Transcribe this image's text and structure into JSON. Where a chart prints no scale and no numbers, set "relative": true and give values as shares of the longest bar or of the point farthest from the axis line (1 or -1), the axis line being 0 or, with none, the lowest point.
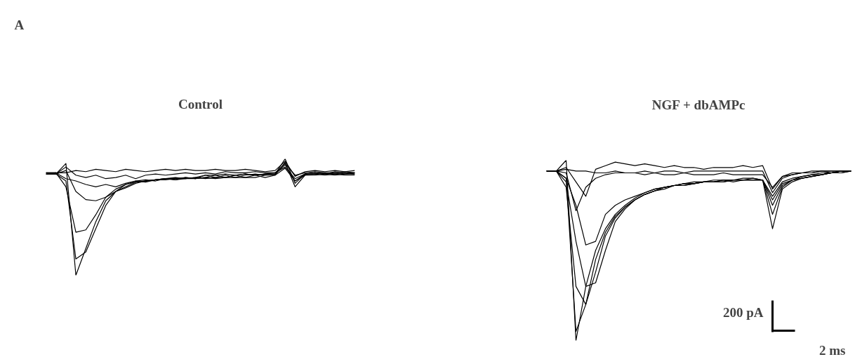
{
  "chart_data": [
    {
      "type": "line",
      "title": "Control",
      "relative": true,
      "tick_labels": false,
      "grid": false,
      "annotations": [
        "A"
      ],
      "categories": [
        null,
        null,
        null,
        null,
        null,
        null,
        null,
        null,
        null,
        null,
        null,
        null,
        null,
        null,
        null,
        null,
        null,
        null,
        null,
        null,
        null,
        null,
        null,
        null,
        null,
        null,
        null,
        null,
        null,
        null,
        null,
        null
      ],
      "series": [
        {
          "color": "#000000",
          "values": [
            0.87,
            0.87,
            0.96,
            0.0,
            0.23,
            0.46,
            0.64,
            0.72,
            0.76,
            0.8,
            0.81,
            0.82,
            0.82,
            0.83,
            0.83,
            0.83,
            0.84,
            0.83,
            0.84,
            0.84,
            0.84,
            0.86,
            0.84,
            0.86,
            0.97,
            0.76,
            0.86,
            0.86,
            0.87,
            0.86,
            0.87,
            0.87
          ]
        },
        {
          "color": "#000000",
          "values": [
            0.87,
            0.87,
            0.81,
            0.14,
            0.2,
            0.4,
            0.6,
            0.72,
            0.78,
            0.8,
            0.81,
            0.82,
            0.83,
            0.82,
            0.83,
            0.84,
            0.83,
            0.84,
            0.84,
            0.86,
            0.84,
            0.84,
            0.86,
            0.86,
            0.92,
            0.81,
            0.86,
            0.87,
            0.86,
            0.87,
            0.86,
            0.86
          ]
        },
        {
          "color": "#000000",
          "values": [
            0.88,
            0.88,
            0.76,
            0.37,
            0.39,
            0.52,
            0.67,
            0.74,
            0.78,
            0.81,
            0.82,
            0.81,
            0.83,
            0.83,
            0.84,
            0.83,
            0.86,
            0.84,
            0.86,
            0.84,
            0.86,
            0.87,
            0.86,
            0.87,
            1.0,
            0.79,
            0.87,
            0.88,
            0.87,
            0.88,
            0.87,
            0.88
          ]
        },
        {
          "color": "#000000",
          "values": [
            0.87,
            0.87,
            0.9,
            0.72,
            0.65,
            0.64,
            0.67,
            0.72,
            0.75,
            0.79,
            0.81,
            0.82,
            0.83,
            0.84,
            0.83,
            0.84,
            0.86,
            0.86,
            0.87,
            0.86,
            0.87,
            0.86,
            0.87,
            0.87,
            0.95,
            0.81,
            0.87,
            0.87,
            0.88,
            0.87,
            0.88,
            0.87
          ]
        },
        {
          "color": "#000000",
          "values": [
            0.87,
            0.88,
            0.83,
            0.81,
            0.78,
            0.76,
            0.78,
            0.76,
            0.79,
            0.81,
            0.8,
            0.82,
            0.83,
            0.82,
            0.84,
            0.83,
            0.84,
            0.86,
            0.84,
            0.86,
            0.87,
            0.86,
            0.87,
            0.88,
            0.93,
            0.83,
            0.87,
            0.88,
            0.87,
            0.89,
            0.88,
            0.88
          ]
        },
        {
          "color": "#000000",
          "values": [
            0.88,
            0.87,
            0.93,
            0.86,
            0.84,
            0.86,
            0.83,
            0.84,
            0.86,
            0.83,
            0.86,
            0.87,
            0.86,
            0.87,
            0.88,
            0.87,
            0.88,
            0.87,
            0.89,
            0.88,
            0.88,
            0.89,
            0.88,
            0.88,
            0.96,
            0.86,
            0.88,
            0.89,
            0.88,
            0.88,
            0.89,
            0.88
          ]
        },
        {
          "color": "#000000",
          "values": [
            0.88,
            0.88,
            0.88,
            0.9,
            0.89,
            0.91,
            0.9,
            0.89,
            0.91,
            0.9,
            0.89,
            0.9,
            0.91,
            0.9,
            0.91,
            0.9,
            0.9,
            0.91,
            0.9,
            0.9,
            0.91,
            0.9,
            0.89,
            0.9,
            0.98,
            0.85,
            0.89,
            0.9,
            0.89,
            0.9,
            0.89,
            0.9
          ]
        }
      ]
    },
    {
      "type": "line",
      "title": "NGF + dbAMPc",
      "relative": true,
      "tick_labels": false,
      "grid": false,
      "annotations": [
        "200 pA",
        "2 ms"
      ],
      "categories": [
        null,
        null,
        null,
        null,
        null,
        null,
        null,
        null,
        null,
        null,
        null,
        null,
        null,
        null,
        null,
        null,
        null,
        null,
        null,
        null,
        null,
        null,
        null,
        null,
        null,
        null,
        null,
        null,
        null,
        null,
        null,
        null
      ],
      "series": [
        {
          "color": "#000000",
          "values": [
            0.94,
            0.94,
            1.0,
            0.0,
            0.3,
            0.5,
            0.62,
            0.7,
            0.75,
            0.79,
            0.82,
            0.84,
            0.85,
            0.86,
            0.87,
            0.87,
            0.88,
            0.88,
            0.88,
            0.89,
            0.89,
            0.89,
            0.89,
            0.62,
            0.84,
            0.88,
            0.9,
            0.91,
            0.92,
            0.93,
            0.93,
            0.94
          ]
        },
        {
          "color": "#000000",
          "values": [
            0.94,
            0.94,
            0.9,
            0.05,
            0.2,
            0.45,
            0.6,
            0.69,
            0.74,
            0.78,
            0.81,
            0.83,
            0.85,
            0.86,
            0.86,
            0.87,
            0.88,
            0.88,
            0.89,
            0.88,
            0.89,
            0.89,
            0.89,
            0.7,
            0.85,
            0.89,
            0.9,
            0.91,
            0.92,
            0.93,
            0.94,
            0.94
          ]
        },
        {
          "color": "#000000",
          "values": [
            0.94,
            0.94,
            0.85,
            0.3,
            0.2,
            0.38,
            0.58,
            0.68,
            0.74,
            0.78,
            0.81,
            0.83,
            0.84,
            0.86,
            0.86,
            0.87,
            0.88,
            0.88,
            0.88,
            0.89,
            0.89,
            0.89,
            0.89,
            0.75,
            0.86,
            0.89,
            0.9,
            0.91,
            0.92,
            0.93,
            0.93,
            0.94
          ]
        },
        {
          "color": "#000000",
          "values": [
            0.94,
            0.94,
            0.88,
            0.55,
            0.3,
            0.32,
            0.5,
            0.66,
            0.73,
            0.78,
            0.81,
            0.83,
            0.85,
            0.86,
            0.87,
            0.87,
            0.88,
            0.88,
            0.89,
            0.89,
            0.89,
            0.9,
            0.89,
            0.78,
            0.87,
            0.89,
            0.91,
            0.92,
            0.92,
            0.93,
            0.94,
            0.94
          ]
        },
        {
          "color": "#000000",
          "values": [
            0.94,
            0.94,
            0.9,
            0.75,
            0.53,
            0.55,
            0.7,
            0.75,
            0.78,
            0.8,
            0.82,
            0.84,
            0.85,
            0.86,
            0.87,
            0.88,
            0.88,
            0.89,
            0.89,
            0.89,
            0.9,
            0.9,
            0.89,
            0.8,
            0.88,
            0.9,
            0.91,
            0.92,
            0.93,
            0.93,
            0.94,
            0.94
          ]
        },
        {
          "color": "#000000",
          "values": [
            0.94,
            0.94,
            0.93,
            0.72,
            0.85,
            0.9,
            0.92,
            0.93,
            0.93,
            0.93,
            0.94,
            0.93,
            0.94,
            0.94,
            0.93,
            0.94,
            0.94,
            0.94,
            0.94,
            0.94,
            0.94,
            0.94,
            0.94,
            0.82,
            0.9,
            0.92,
            0.93,
            0.93,
            0.94,
            0.94,
            0.94,
            0.94
          ]
        },
        {
          "color": "#000000",
          "values": [
            0.94,
            0.94,
            0.96,
            0.88,
            0.8,
            0.95,
            0.97,
            0.99,
            0.98,
            0.97,
            0.98,
            0.97,
            0.96,
            0.97,
            0.96,
            0.96,
            0.95,
            0.96,
            0.96,
            0.96,
            0.97,
            0.96,
            0.97,
            0.84,
            0.91,
            0.93,
            0.93,
            0.94,
            0.94,
            0.94,
            0.94,
            0.94
          ]
        },
        {
          "color": "#000000",
          "values": [
            0.94,
            0.94,
            0.95,
            0.94,
            0.94,
            0.93,
            0.93,
            0.94,
            0.93,
            0.93,
            0.92,
            0.93,
            0.92,
            0.92,
            0.93,
            0.92,
            0.92,
            0.92,
            0.93,
            0.92,
            0.92,
            0.92,
            0.92,
            0.85,
            0.91,
            0.92,
            0.93,
            0.93,
            0.94,
            0.93,
            0.94,
            0.94
          ]
        }
      ]
    }
  ]
}
